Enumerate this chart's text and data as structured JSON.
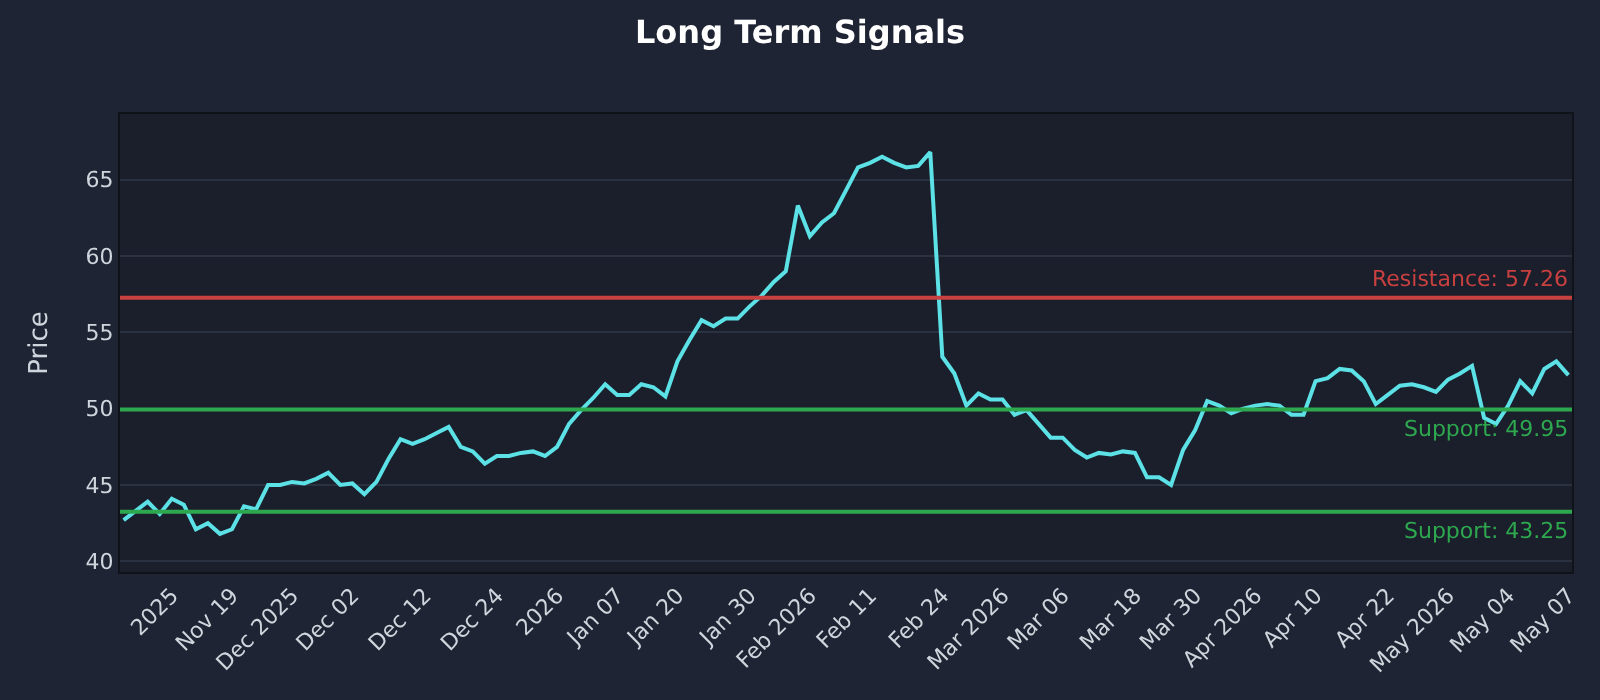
{
  "chart_data": {
    "type": "line",
    "title": "Long Term Signals",
    "ylabel": "Price",
    "categories": [
      null,
      null,
      null,
      null,
      "2025",
      null,
      null,
      null,
      null,
      "Nov 19",
      null,
      null,
      null,
      null,
      "Dec 2025",
      null,
      null,
      null,
      null,
      "Dec 02",
      null,
      null,
      null,
      null,
      null,
      "Dec 12",
      null,
      null,
      null,
      null,
      null,
      "Dec 24",
      null,
      null,
      null,
      null,
      "2026",
      null,
      null,
      null,
      null,
      "Jan 07",
      null,
      null,
      null,
      null,
      "Jan 20",
      null,
      null,
      null,
      null,
      null,
      "Jan 30",
      null,
      null,
      null,
      null,
      "Feb 2026",
      null,
      null,
      null,
      null,
      "Feb 11",
      null,
      null,
      null,
      null,
      null,
      "Feb 24",
      null,
      null,
      null,
      null,
      "Mar 2026",
      null,
      null,
      null,
      null,
      "Mar 06",
      null,
      null,
      null,
      null,
      null,
      "Mar 18",
      null,
      null,
      null,
      null,
      "Mar 30",
      null,
      null,
      null,
      null,
      "Apr 2026",
      null,
      null,
      null,
      null,
      "Apr 10",
      null,
      null,
      null,
      null,
      null,
      "Apr 22",
      null,
      null,
      null,
      null,
      "May 2026",
      null,
      null,
      null,
      null,
      "May 04",
      null,
      null,
      null,
      null,
      "May 07"
    ],
    "series": [
      {
        "color": "#5ce1e6",
        "values": [
          42.7,
          43.3,
          43.9,
          43.1,
          44.1,
          43.7,
          42.1,
          42.5,
          41.8,
          42.1,
          43.6,
          43.4,
          45.0,
          45.0,
          45.2,
          45.1,
          45.4,
          45.8,
          45.0,
          45.1,
          44.4,
          45.2,
          46.7,
          48.0,
          47.7,
          48.0,
          48.4,
          48.8,
          47.5,
          47.2,
          46.4,
          46.9,
          46.9,
          47.1,
          47.2,
          46.9,
          47.5,
          49.0,
          49.9,
          50.7,
          51.6,
          50.9,
          50.9,
          51.6,
          51.4,
          50.8,
          53.1,
          54.5,
          55.8,
          55.4,
          55.9,
          55.9,
          56.7,
          57.4,
          58.3,
          59.0,
          63.3,
          61.3,
          62.2,
          62.8,
          64.3,
          65.8,
          66.1,
          66.5,
          66.1,
          65.8,
          65.9,
          66.8,
          53.4,
          52.3,
          50.2,
          51.0,
          50.6,
          50.6,
          49.6,
          49.9,
          49.0,
          48.1,
          48.1,
          47.3,
          46.8,
          47.1,
          47.0,
          47.2,
          47.1,
          45.5,
          45.5,
          45.0,
          47.3,
          48.6,
          50.5,
          50.2,
          49.7,
          50.0,
          50.2,
          50.3,
          50.2,
          49.6,
          49.6,
          51.8,
          52.0,
          52.6,
          52.5,
          51.8,
          50.3,
          50.9,
          51.5,
          51.6,
          51.4,
          51.1,
          51.9,
          52.3,
          52.8,
          49.4,
          49.0,
          50.2,
          51.8,
          51.0,
          52.6,
          53.1,
          52.2
        ]
      }
    ],
    "ylim": [
      39.3,
      69.3
    ],
    "yticks": [
      40,
      45,
      50,
      55,
      60,
      65
    ],
    "grid": "y",
    "marker": "none",
    "line_style": "solid",
    "ref_lines": [
      {
        "axis": "y",
        "value": 57.26,
        "label": "Resistance: 57.26",
        "color": "#c94040"
      },
      {
        "axis": "y",
        "value": 49.95,
        "label": "Support: 49.95",
        "color": "#2ea84f"
      },
      {
        "axis": "y",
        "value": 43.25,
        "label": "Support: 43.25",
        "color": "#2ea84f"
      }
    ]
  }
}
